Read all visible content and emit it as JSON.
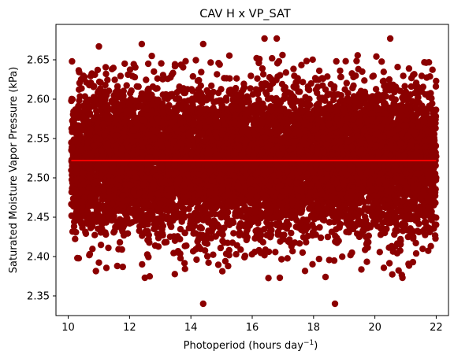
{
  "chart_data": {
    "type": "scatter",
    "title": "CAV H x VP_SAT",
    "xlabel": "Photoperiod (hours day",
    "xlabel_superscript": "−1",
    "xlabel_close": ")",
    "ylabel": "Saturated Moisture Vapor Pressure (kPa)",
    "xlim": [
      9.6,
      22.4
    ],
    "ylim": [
      2.325,
      2.695
    ],
    "x_ticks": [
      10,
      12,
      14,
      16,
      18,
      20,
      22
    ],
    "y_ticks": [
      2.35,
      2.4,
      2.45,
      2.5,
      2.55,
      2.6,
      2.65
    ],
    "x_tick_labels": [
      "10",
      "12",
      "14",
      "16",
      "18",
      "20",
      "22"
    ],
    "y_tick_labels": [
      "2.35",
      "2.40",
      "2.45",
      "2.50",
      "2.55",
      "2.60",
      "2.65"
    ],
    "series": [
      {
        "kind": "scatter",
        "color": "#8b0000",
        "x_range": [
          10.1,
          22.0
        ],
        "y_range": [
          2.34,
          2.677
        ],
        "y_center": 2.522,
        "y_std": 0.045,
        "n_points": 9000,
        "outliers": [
          {
            "x": 14.4,
            "y": 2.34
          },
          {
            "x": 18.7,
            "y": 2.34
          },
          {
            "x": 12.5,
            "y": 2.373
          },
          {
            "x": 16.9,
            "y": 2.373
          },
          {
            "x": 20.9,
            "y": 2.373
          },
          {
            "x": 11.0,
            "y": 2.667
          },
          {
            "x": 12.4,
            "y": 2.67
          },
          {
            "x": 14.4,
            "y": 2.67
          },
          {
            "x": 16.4,
            "y": 2.677
          },
          {
            "x": 16.8,
            "y": 2.677
          },
          {
            "x": 20.5,
            "y": 2.677
          },
          {
            "x": 10.3,
            "y": 2.398
          },
          {
            "x": 11.6,
            "y": 2.388
          },
          {
            "x": 21.9,
            "y": 2.528
          }
        ]
      },
      {
        "kind": "line",
        "color": "#ff0000",
        "x": [
          10.1,
          22.0
        ],
        "y": [
          2.522,
          2.522
        ]
      }
    ],
    "grid": false,
    "legend": "none"
  }
}
